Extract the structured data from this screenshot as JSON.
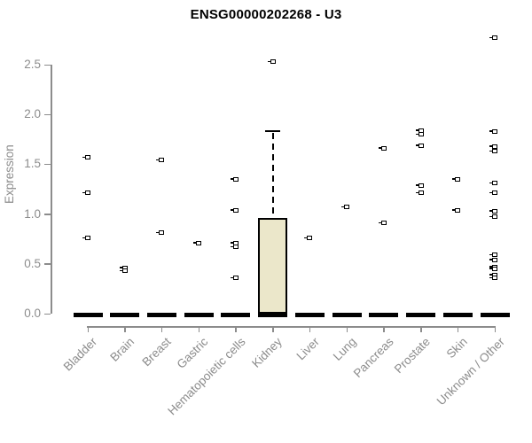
{
  "chart_data": {
    "type": "boxplot",
    "title": "ENSG00000202268 - U3",
    "ylabel": "Expression",
    "xlabel": "",
    "ylim": [
      0,
      2.8
    ],
    "yticks": [
      0.0,
      0.5,
      1.0,
      1.5,
      2.0,
      2.5
    ],
    "grid": false,
    "legend": "none",
    "categories": [
      "Bladder",
      "Brain",
      "Breast",
      "Gastric",
      "Hematopoietic cells",
      "Kidney",
      "Liver",
      "Lung",
      "Pancreas",
      "Prostate",
      "Skin",
      "Unknown / Other"
    ],
    "boxes": [
      {
        "category": "Bladder",
        "median": 0,
        "q1": 0,
        "q3": 0,
        "whisker_low": 0,
        "whisker_high": 0
      },
      {
        "category": "Brain",
        "median": 0,
        "q1": 0,
        "q3": 0,
        "whisker_low": 0,
        "whisker_high": 0
      },
      {
        "category": "Breast",
        "median": 0,
        "q1": 0,
        "q3": 0,
        "whisker_low": 0,
        "whisker_high": 0
      },
      {
        "category": "Gastric",
        "median": 0,
        "q1": 0,
        "q3": 0,
        "whisker_low": 0,
        "whisker_high": 0
      },
      {
        "category": "Hematopoietic cells",
        "median": 0,
        "q1": 0,
        "q3": 0,
        "whisker_low": 0,
        "whisker_high": 0
      },
      {
        "category": "Kidney",
        "median": 0,
        "q1": 0,
        "q3": 0.96,
        "whisker_low": 0,
        "whisker_high": 1.83
      },
      {
        "category": "Liver",
        "median": 0,
        "q1": 0,
        "q3": 0,
        "whisker_low": 0,
        "whisker_high": 0
      },
      {
        "category": "Lung",
        "median": 0,
        "q1": 0,
        "q3": 0,
        "whisker_low": 0,
        "whisker_high": 0
      },
      {
        "category": "Pancreas",
        "median": 0,
        "q1": 0,
        "q3": 0,
        "whisker_low": 0,
        "whisker_high": 0
      },
      {
        "category": "Prostate",
        "median": 0,
        "q1": 0,
        "q3": 0,
        "whisker_low": 0,
        "whisker_high": 0
      },
      {
        "category": "Skin",
        "median": 0,
        "q1": 0,
        "q3": 0,
        "whisker_low": 0,
        "whisker_high": 0
      },
      {
        "category": "Unknown / Other",
        "median": 0,
        "q1": 0,
        "q3": 0,
        "whisker_low": 0,
        "whisker_high": 0
      }
    ],
    "points": [
      {
        "category": "Bladder",
        "values": [
          1.57,
          1.21,
          0.76
        ]
      },
      {
        "category": "Brain",
        "values": [
          0.46,
          0.43
        ]
      },
      {
        "category": "Breast",
        "values": [
          1.54,
          0.81
        ]
      },
      {
        "category": "Gastric",
        "values": [
          0.71
        ]
      },
      {
        "category": "Hematopoietic cells",
        "values": [
          1.35,
          1.04,
          0.71,
          0.67,
          0.36
        ]
      },
      {
        "category": "Kidney",
        "values": [
          2.53
        ]
      },
      {
        "category": "Liver",
        "values": [
          0.76
        ]
      },
      {
        "category": "Lung",
        "values": [
          1.07
        ]
      },
      {
        "category": "Pancreas",
        "values": [
          1.66,
          0.91
        ]
      },
      {
        "category": "Prostate",
        "values": [
          1.84,
          1.8,
          1.69,
          1.29,
          1.21
        ]
      },
      {
        "category": "Skin",
        "values": [
          1.35,
          1.04
        ]
      },
      {
        "category": "Unknown / Other",
        "values": [
          2.77,
          1.83,
          1.68,
          1.63,
          1.31,
          1.21,
          1.03,
          0.97,
          0.59,
          0.54,
          0.47,
          0.45,
          0.39,
          0.36
        ]
      }
    ],
    "colors": {
      "box_fill": "#EBE7CA",
      "box_border": "#000000",
      "axis": "#8c8c8c",
      "label": "#8c8c8c",
      "point": "#000000",
      "title": "#000000"
    }
  }
}
